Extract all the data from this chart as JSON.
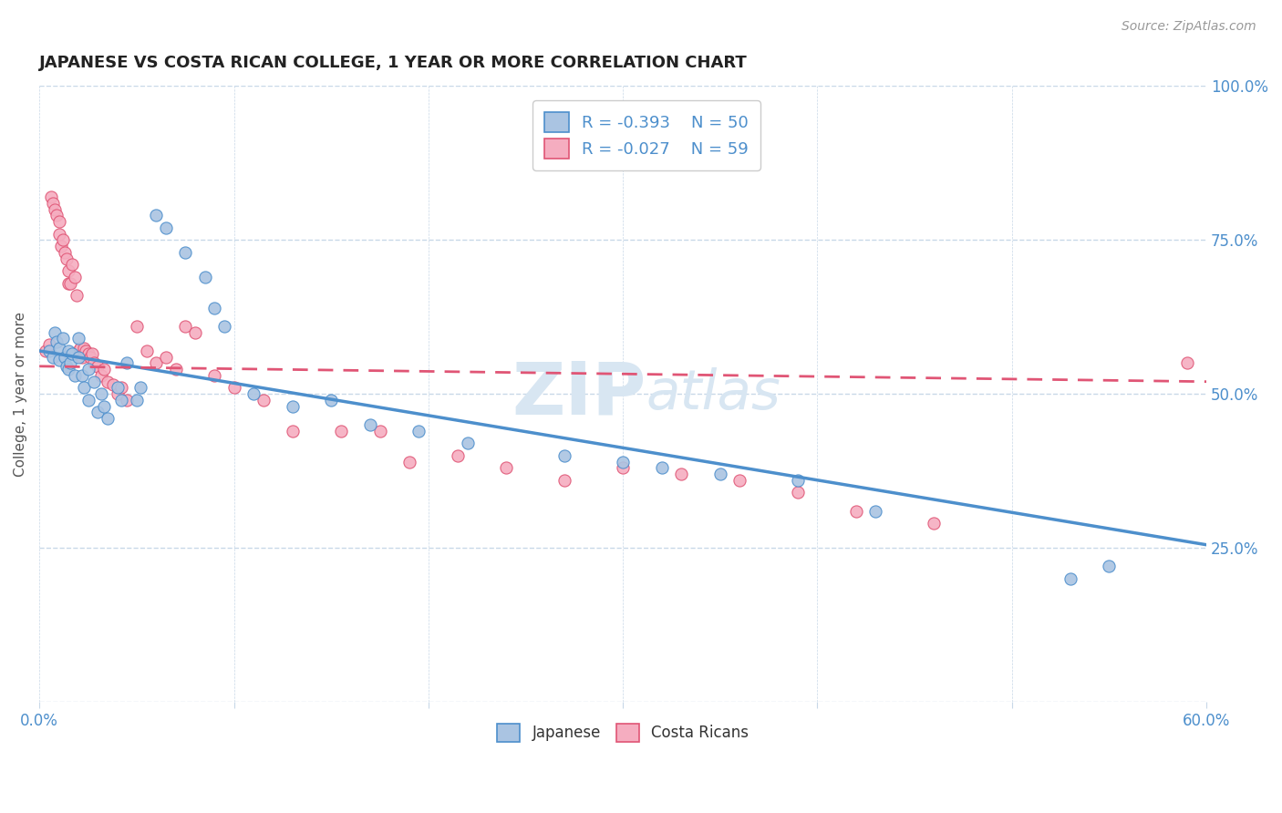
{
  "title": "JAPANESE VS COSTA RICAN COLLEGE, 1 YEAR OR MORE CORRELATION CHART",
  "source_text": "Source: ZipAtlas.com",
  "ylabel": "College, 1 year or more",
  "xlim": [
    0.0,
    0.6
  ],
  "ylim": [
    0.0,
    1.0
  ],
  "xticks": [
    0.0,
    0.1,
    0.2,
    0.3,
    0.4,
    0.5,
    0.6
  ],
  "yticks": [
    0.0,
    0.25,
    0.5,
    0.75,
    1.0
  ],
  "japanese_color": "#aac4e2",
  "costa_rican_color": "#f5adc0",
  "japanese_line_color": "#4d8fcc",
  "costa_rican_line_color": "#e05575",
  "background_color": "#ffffff",
  "grid_color": "#c8d8e8",
  "title_color": "#222222",
  "axis_label_color": "#555555",
  "tick_color": "#4d8fcc",
  "legend_text_color": "#4d8fcc",
  "watermark_color": "#d8e6f2",
  "japanese_x": [
    0.005,
    0.007,
    0.008,
    0.009,
    0.01,
    0.01,
    0.012,
    0.013,
    0.014,
    0.015,
    0.015,
    0.016,
    0.017,
    0.018,
    0.02,
    0.02,
    0.022,
    0.023,
    0.025,
    0.025,
    0.028,
    0.03,
    0.032,
    0.033,
    0.035,
    0.04,
    0.042,
    0.045,
    0.05,
    0.052,
    0.06,
    0.065,
    0.075,
    0.085,
    0.09,
    0.095,
    0.11,
    0.13,
    0.15,
    0.17,
    0.195,
    0.22,
    0.27,
    0.3,
    0.32,
    0.35,
    0.39,
    0.43,
    0.53,
    0.55
  ],
  "japanese_y": [
    0.57,
    0.56,
    0.6,
    0.585,
    0.575,
    0.555,
    0.59,
    0.56,
    0.545,
    0.54,
    0.57,
    0.55,
    0.565,
    0.53,
    0.59,
    0.56,
    0.53,
    0.51,
    0.54,
    0.49,
    0.52,
    0.47,
    0.5,
    0.48,
    0.46,
    0.51,
    0.49,
    0.55,
    0.49,
    0.51,
    0.79,
    0.77,
    0.73,
    0.69,
    0.64,
    0.61,
    0.5,
    0.48,
    0.49,
    0.45,
    0.44,
    0.42,
    0.4,
    0.39,
    0.38,
    0.37,
    0.36,
    0.31,
    0.2,
    0.22
  ],
  "costa_rican_x": [
    0.003,
    0.005,
    0.006,
    0.007,
    0.008,
    0.009,
    0.01,
    0.01,
    0.011,
    0.012,
    0.013,
    0.014,
    0.015,
    0.015,
    0.016,
    0.017,
    0.018,
    0.019,
    0.02,
    0.021,
    0.022,
    0.023,
    0.024,
    0.025,
    0.026,
    0.027,
    0.028,
    0.03,
    0.032,
    0.033,
    0.035,
    0.038,
    0.04,
    0.042,
    0.045,
    0.05,
    0.055,
    0.06,
    0.065,
    0.07,
    0.075,
    0.08,
    0.09,
    0.1,
    0.115,
    0.13,
    0.155,
    0.175,
    0.19,
    0.215,
    0.24,
    0.27,
    0.3,
    0.33,
    0.36,
    0.39,
    0.42,
    0.46,
    0.59
  ],
  "costa_rican_y": [
    0.57,
    0.58,
    0.82,
    0.81,
    0.8,
    0.79,
    0.78,
    0.76,
    0.74,
    0.75,
    0.73,
    0.72,
    0.7,
    0.68,
    0.68,
    0.71,
    0.69,
    0.66,
    0.57,
    0.575,
    0.56,
    0.575,
    0.57,
    0.565,
    0.56,
    0.565,
    0.55,
    0.545,
    0.53,
    0.54,
    0.52,
    0.515,
    0.5,
    0.51,
    0.49,
    0.61,
    0.57,
    0.55,
    0.56,
    0.54,
    0.61,
    0.6,
    0.53,
    0.51,
    0.49,
    0.44,
    0.44,
    0.44,
    0.39,
    0.4,
    0.38,
    0.36,
    0.38,
    0.37,
    0.36,
    0.34,
    0.31,
    0.29,
    0.55
  ],
  "jap_trend_x0": 0.0,
  "jap_trend_y0": 0.57,
  "jap_trend_x1": 0.6,
  "jap_trend_y1": 0.255,
  "cr_trend_x0": 0.0,
  "cr_trend_y0": 0.545,
  "cr_trend_x1": 0.6,
  "cr_trend_y1": 0.52,
  "figsize": [
    14.06,
    8.92
  ],
  "dpi": 100
}
